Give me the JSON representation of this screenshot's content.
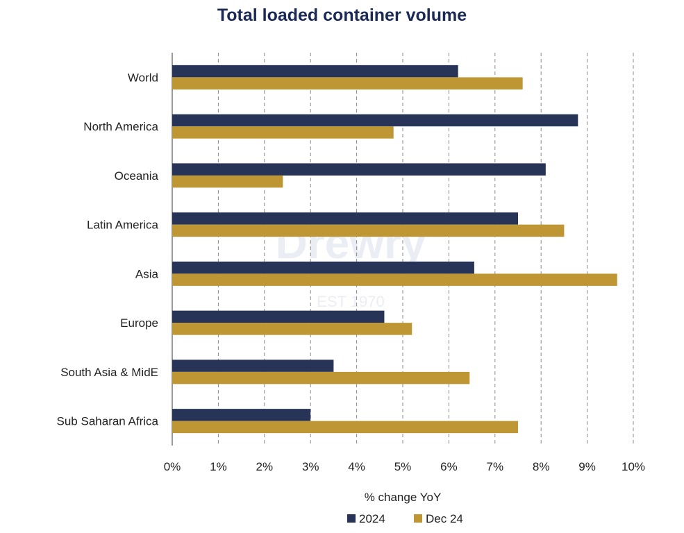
{
  "chart_data": {
    "type": "bar",
    "orientation": "horizontal",
    "title": "Total loaded container volume",
    "xlabel": "% change YoY",
    "ylabel": "",
    "categories": [
      "World",
      "North America",
      "Oceania",
      "Latin America",
      "Asia",
      "Europe",
      "South Asia & MidE",
      "Sub Saharan Africa"
    ],
    "series": [
      {
        "name": "2024",
        "color": "#283457",
        "values": [
          6.2,
          8.8,
          8.1,
          7.5,
          6.55,
          4.6,
          3.5,
          3.0
        ]
      },
      {
        "name": "Dec 24",
        "color": "#bf9634",
        "values": [
          7.6,
          4.8,
          2.4,
          8.5,
          9.65,
          5.2,
          6.45,
          7.5
        ]
      }
    ],
    "xlim": [
      0,
      10
    ],
    "x_ticks": [
      "0%",
      "1%",
      "2%",
      "3%",
      "4%",
      "5%",
      "6%",
      "7%",
      "8%",
      "9%",
      "10%"
    ],
    "grid": "vertical dashed",
    "legend_position": "bottom",
    "watermark": [
      "Drewry",
      "EST 1970"
    ]
  }
}
